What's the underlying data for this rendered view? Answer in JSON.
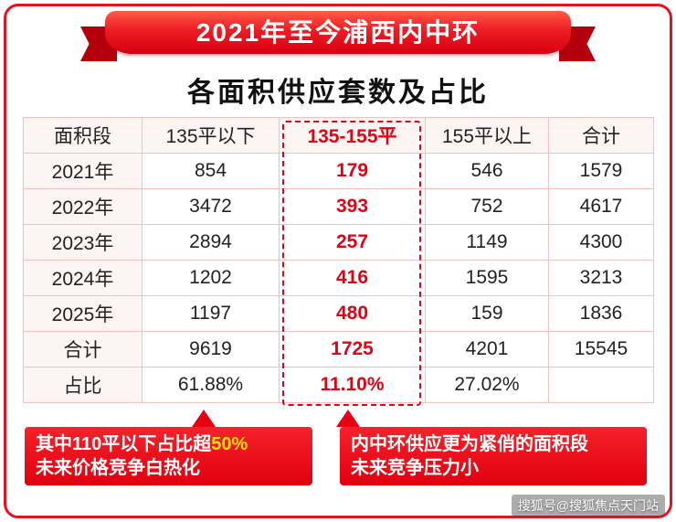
{
  "banner": {
    "title": "2021年至今浦西内中环"
  },
  "subtitle": "各面积供应套数及占比",
  "chart_data": {
    "type": "table",
    "title": "2021年至今浦西内中环各面积供应套数及占比",
    "columns": [
      "面积段",
      "135平以下",
      "135-155平",
      "155平以上",
      "合计"
    ],
    "rows": [
      [
        "2021年",
        "854",
        "179",
        "546",
        "1579"
      ],
      [
        "2022年",
        "3472",
        "393",
        "752",
        "4617"
      ],
      [
        "2023年",
        "2894",
        "257",
        "1149",
        "4300"
      ],
      [
        "2024年",
        "1202",
        "416",
        "1595",
        "3213"
      ],
      [
        "2025年",
        "1197",
        "480",
        "159",
        "1836"
      ],
      [
        "合计",
        "9619",
        "1725",
        "4201",
        "15545"
      ],
      [
        "占比",
        "61.88%",
        "11.10%",
        "27.02%",
        ""
      ]
    ],
    "highlighted_column": "135-155平",
    "highlight_color": "#e60012"
  },
  "callouts": {
    "left": {
      "line1_prefix": "其中110平以下占比超",
      "line1_highlight": "50%",
      "line2": "未来价格竞争白热化"
    },
    "right": {
      "line1": "内中环供应更为紧俏的面积段",
      "line2": "未来竞争压力小"
    }
  },
  "watermark": "搜狐号@搜狐焦点天门站",
  "colors": {
    "accent": "#e60012",
    "ribbon_dark": "#b3000c",
    "highlight_yellow": "#ffe100",
    "table_border": "#f2bfc3"
  }
}
